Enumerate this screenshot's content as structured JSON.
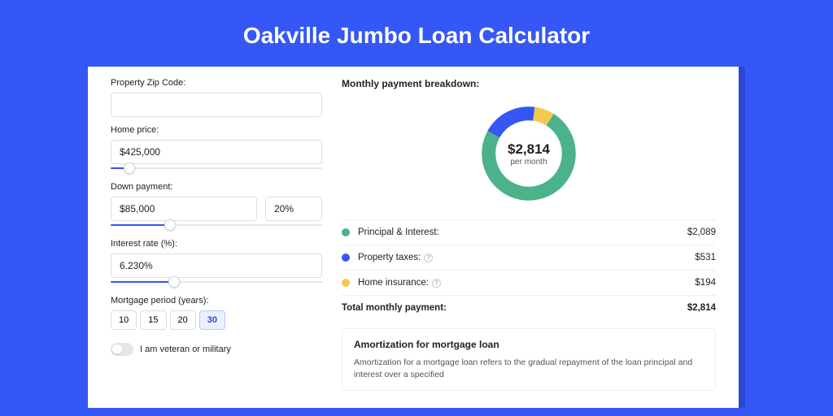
{
  "page": {
    "title": "Oakville Jumbo Loan Calculator",
    "bg_color": "#3457f5"
  },
  "form": {
    "zip": {
      "label": "Property Zip Code:",
      "value": ""
    },
    "price": {
      "label": "Home price:",
      "value": "$425,000",
      "slider_pct": 9
    },
    "down": {
      "label": "Down payment:",
      "amount": "$85,000",
      "percent": "20%",
      "slider_pct": 28
    },
    "rate": {
      "label": "Interest rate (%):",
      "value": "6.230%",
      "slider_pct": 30
    },
    "period": {
      "label": "Mortgage period (years):",
      "options": [
        "10",
        "15",
        "20",
        "30"
      ],
      "selected": "30"
    },
    "veteran_label": "I am veteran or military"
  },
  "breakdown": {
    "title": "Monthly payment breakdown:",
    "center_amount": "$2,814",
    "center_sub": "per month",
    "items": [
      {
        "label": "Principal & Interest:",
        "value": "$2,089",
        "color": "#4bb28a",
        "pct": 74,
        "info": false
      },
      {
        "label": "Property taxes:",
        "value": "$531",
        "color": "#3457f5",
        "pct": 19,
        "info": true
      },
      {
        "label": "Home insurance:",
        "value": "$194",
        "color": "#f2c94c",
        "pct": 7,
        "info": true
      }
    ],
    "total_label": "Total monthly payment:",
    "total_value": "$2,814"
  },
  "amort": {
    "title": "Amortization for mortgage loan",
    "body": "Amortization for a mortgage loan refers to the gradual repayment of the loan principal and interest over a specified"
  }
}
